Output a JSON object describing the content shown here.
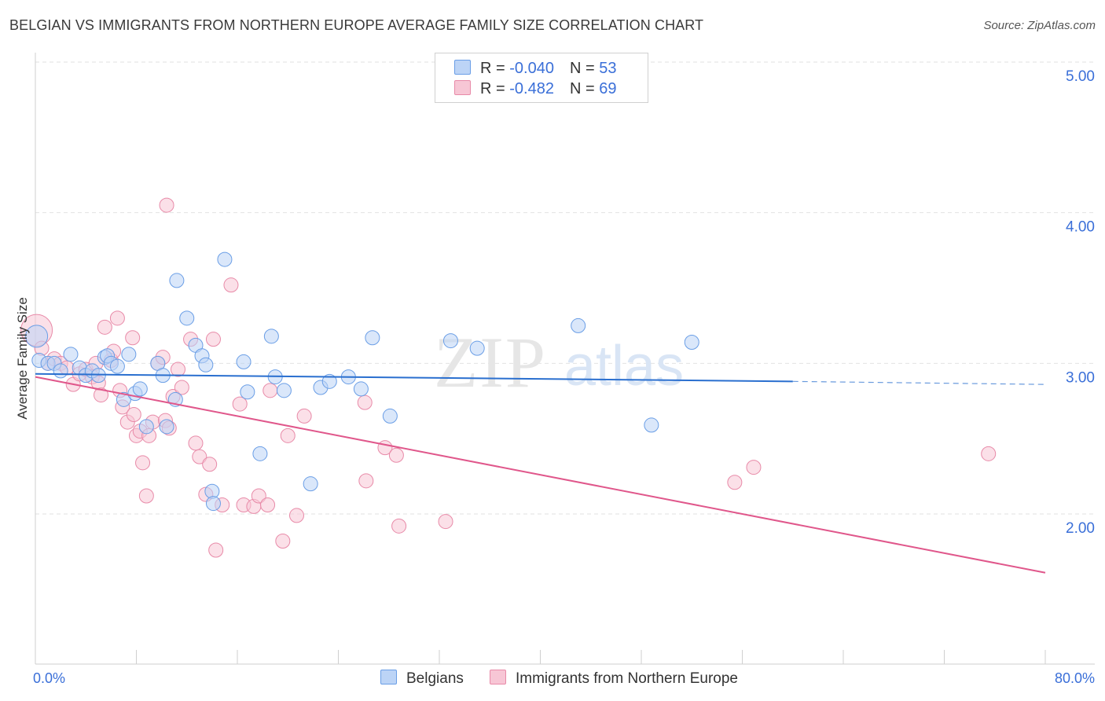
{
  "title": "BELGIAN VS IMMIGRANTS FROM NORTHERN EUROPE AVERAGE FAMILY SIZE CORRELATION CHART",
  "source": "Source: ZipAtlas.com",
  "watermark": {
    "zip": "ZIP",
    "atlas": "atlas"
  },
  "legend_top": {
    "rows": [
      {
        "r_label": "R = ",
        "r_value": "-0.040",
        "n_label": "N = ",
        "n_value": "53"
      },
      {
        "r_label": "R = ",
        "r_value": "-0.482",
        "n_label": "N = ",
        "n_value": "69"
      }
    ]
  },
  "bottom_legend": {
    "series1": "Belgians",
    "series2": "Immigrants from Northern Europe"
  },
  "chart_data": {
    "type": "scatter",
    "title": "BELGIAN VS IMMIGRANTS FROM NORTHERN EUROPE AVERAGE FAMILY SIZE CORRELATION CHART",
    "ylabel": "Average Family Size",
    "xlabel": "",
    "xlim": [
      0,
      80
    ],
    "ylim": [
      1.0,
      5.15
    ],
    "x_tick_labels": [
      "0.0%",
      "80.0%"
    ],
    "y_ticks": [
      2.0,
      3.0,
      4.0,
      5.0
    ],
    "y_tick_labels": [
      "2.00",
      "3.00",
      "4.00",
      "5.00"
    ],
    "grid": true,
    "colors": {
      "series1": "#6a9ee6",
      "series1_fill": "#bcd4f6",
      "series1_line": "#2a6fcf",
      "series2": "#e88aa8",
      "series2_fill": "#f7c6d5",
      "series2_line": "#e0578b",
      "tick": "#3a6fd8"
    },
    "series": [
      {
        "name": "Belgians",
        "r": -0.04,
        "n": 53,
        "trend": {
          "x0": 0,
          "y0": 2.93,
          "x1": 60,
          "y1": 2.88,
          "dash_to_x": 80,
          "dash_to_y": 2.86
        },
        "points": [
          [
            0.1,
            3.18,
            14
          ],
          [
            0.3,
            3.02,
            9
          ],
          [
            1.0,
            3.0,
            9
          ],
          [
            1.5,
            3.0,
            9
          ],
          [
            2.0,
            2.95,
            9
          ],
          [
            2.8,
            3.06,
            9
          ],
          [
            3.5,
            2.97,
            9
          ],
          [
            4.0,
            2.92,
            9
          ],
          [
            4.5,
            2.95,
            9
          ],
          [
            5.0,
            2.92,
            9
          ],
          [
            5.5,
            3.04,
            9
          ],
          [
            5.7,
            3.05,
            9
          ],
          [
            6.0,
            3.0,
            9
          ],
          [
            6.5,
            2.98,
            9
          ],
          [
            7.0,
            2.76,
            9
          ],
          [
            7.4,
            3.06,
            9
          ],
          [
            7.9,
            2.8,
            9
          ],
          [
            8.3,
            2.83,
            9
          ],
          [
            8.8,
            2.58,
            9
          ],
          [
            9.7,
            3.0,
            9
          ],
          [
            10.1,
            2.92,
            9
          ],
          [
            10.4,
            2.58,
            9
          ],
          [
            11.1,
            2.76,
            9
          ],
          [
            11.2,
            3.55,
            9
          ],
          [
            12.0,
            3.3,
            9
          ],
          [
            12.7,
            3.12,
            9
          ],
          [
            13.2,
            3.05,
            9
          ],
          [
            13.5,
            2.99,
            9
          ],
          [
            14.0,
            2.15,
            9
          ],
          [
            14.1,
            2.07,
            9
          ],
          [
            15.0,
            3.69,
            9
          ],
          [
            16.5,
            3.01,
            9
          ],
          [
            16.8,
            2.81,
            9
          ],
          [
            17.8,
            2.4,
            9
          ],
          [
            18.7,
            3.18,
            9
          ],
          [
            19.0,
            2.91,
            9
          ],
          [
            19.7,
            2.82,
            9
          ],
          [
            21.8,
            2.2,
            9
          ],
          [
            22.6,
            2.84,
            9
          ],
          [
            23.3,
            2.88,
            9
          ],
          [
            24.8,
            2.91,
            9
          ],
          [
            25.8,
            2.83,
            9
          ],
          [
            26.7,
            3.17,
            9
          ],
          [
            28.1,
            2.65,
            9
          ],
          [
            32.9,
            3.15,
            9
          ],
          [
            35.0,
            3.1,
            9
          ],
          [
            43.0,
            3.25,
            9
          ],
          [
            48.8,
            2.59,
            9
          ],
          [
            52.0,
            3.14,
            9
          ]
        ]
      },
      {
        "name": "Immigrants from Northern Europe",
        "r": -0.482,
        "n": 69,
        "trend": {
          "x0": 0,
          "y0": 2.91,
          "x1": 80,
          "y1": 1.61
        },
        "points": [
          [
            0.1,
            3.22,
            20
          ],
          [
            0.5,
            3.1,
            9
          ],
          [
            1.0,
            3.0,
            9
          ],
          [
            1.5,
            3.03,
            9
          ],
          [
            2.0,
            3.0,
            9
          ],
          [
            2.5,
            2.97,
            9
          ],
          [
            3.0,
            2.86,
            9
          ],
          [
            3.5,
            2.93,
            9
          ],
          [
            4.0,
            2.96,
            9
          ],
          [
            4.5,
            2.91,
            9
          ],
          [
            4.8,
            3.0,
            9
          ],
          [
            5.0,
            2.87,
            9
          ],
          [
            5.2,
            2.79,
            9
          ],
          [
            5.5,
            3.24,
            9
          ],
          [
            6.0,
            3.02,
            9
          ],
          [
            6.2,
            3.08,
            9
          ],
          [
            6.5,
            3.3,
            9
          ],
          [
            6.7,
            2.82,
            9
          ],
          [
            6.9,
            2.71,
            9
          ],
          [
            7.3,
            2.61,
            9
          ],
          [
            7.7,
            3.17,
            9
          ],
          [
            7.8,
            2.66,
            9
          ],
          [
            8.0,
            2.52,
            9
          ],
          [
            8.3,
            2.55,
            9
          ],
          [
            8.5,
            2.34,
            9
          ],
          [
            8.8,
            2.12,
            9
          ],
          [
            9.0,
            2.52,
            9
          ],
          [
            9.3,
            2.61,
            9
          ],
          [
            9.7,
            3.0,
            9
          ],
          [
            10.1,
            3.04,
            9
          ],
          [
            10.3,
            2.62,
            9
          ],
          [
            10.4,
            4.05,
            9
          ],
          [
            10.6,
            2.57,
            9
          ],
          [
            10.9,
            2.78,
            9
          ],
          [
            11.3,
            2.96,
            9
          ],
          [
            11.6,
            2.84,
            9
          ],
          [
            12.3,
            3.16,
            9
          ],
          [
            12.7,
            2.47,
            9
          ],
          [
            13.0,
            2.38,
            9
          ],
          [
            13.5,
            2.13,
            9
          ],
          [
            13.8,
            2.33,
            9
          ],
          [
            14.1,
            3.16,
            9
          ],
          [
            14.3,
            1.76,
            9
          ],
          [
            14.8,
            2.06,
            9
          ],
          [
            15.5,
            3.52,
            9
          ],
          [
            16.2,
            2.73,
            9
          ],
          [
            16.5,
            2.06,
            9
          ],
          [
            17.3,
            2.05,
            9
          ],
          [
            17.7,
            2.12,
            9
          ],
          [
            18.4,
            2.06,
            9
          ],
          [
            18.6,
            2.82,
            9
          ],
          [
            19.6,
            1.82,
            9
          ],
          [
            20.0,
            2.52,
            9
          ],
          [
            20.7,
            1.99,
            9
          ],
          [
            21.3,
            2.65,
            9
          ],
          [
            26.1,
            2.74,
            9
          ],
          [
            26.2,
            2.22,
            9
          ],
          [
            27.7,
            2.44,
            9
          ],
          [
            28.6,
            2.39,
            9
          ],
          [
            28.8,
            1.92,
            9
          ],
          [
            32.5,
            1.95,
            9
          ],
          [
            55.4,
            2.21,
            9
          ],
          [
            56.9,
            2.31,
            9
          ],
          [
            75.5,
            2.4,
            9
          ]
        ]
      }
    ]
  }
}
